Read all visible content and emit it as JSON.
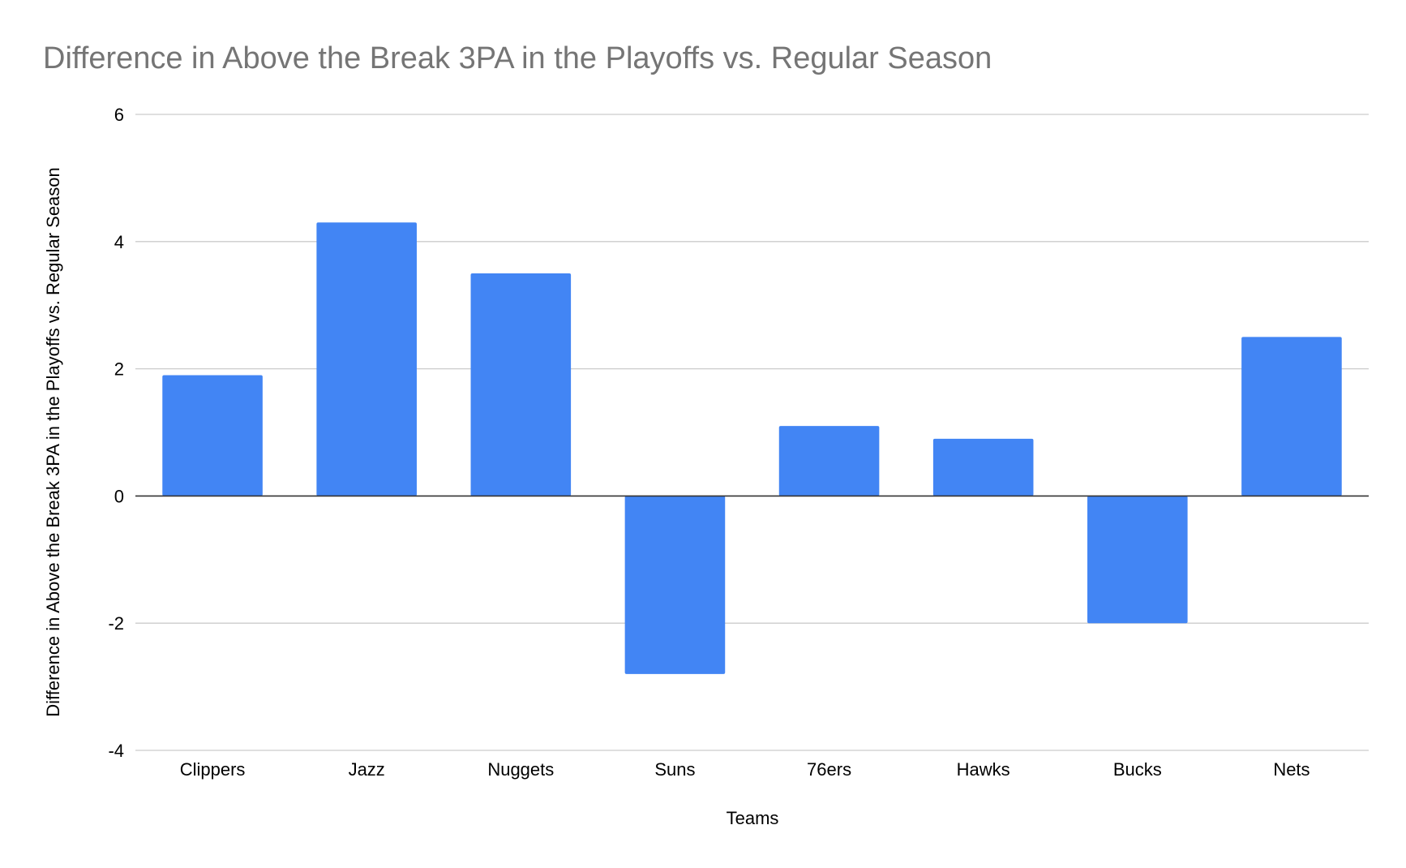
{
  "chart_data": {
    "type": "bar",
    "title": "Difference in Above the Break 3PA in the Playoffs vs. Regular Season",
    "xlabel": "Teams",
    "ylabel": "Difference in Above the Break 3PA in the Playoffs vs. Regular Season",
    "categories": [
      "Clippers",
      "Jazz",
      "Nuggets",
      "Suns",
      "76ers",
      "Hawks",
      "Bucks",
      "Nets"
    ],
    "series": [
      {
        "values": [
          1.9,
          4.3,
          3.5,
          -2.8,
          1.1,
          0.9,
          -2.0,
          2.5
        ],
        "color": "#4285f4"
      }
    ],
    "ylim": [
      -4,
      6
    ],
    "yticks": [
      -4,
      -2,
      0,
      2,
      4,
      6
    ],
    "ytick_labels": [
      "-4",
      "-2",
      "0",
      "2",
      "4",
      "6"
    ],
    "grid": true,
    "legend": "none"
  }
}
